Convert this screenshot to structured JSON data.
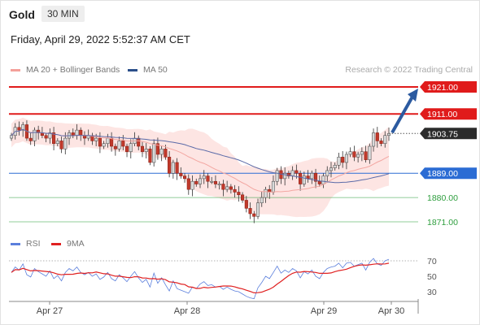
{
  "header": {
    "title": "Gold",
    "timeframe_badge": "30 MIN"
  },
  "timestamp": "Friday, April 29, 2022 5:52:37 AM CET",
  "legend": {
    "items": [
      {
        "label": "MA 20 + Bollinger Bands",
        "color": "#f4a09a"
      },
      {
        "label": "MA 50",
        "color": "#2b4f8a"
      }
    ],
    "credit": "Research © 2022 Trading Central"
  },
  "rsi_legend": {
    "items": [
      {
        "label": "RSI",
        "color": "#5b7fdc"
      },
      {
        "label": "9MA",
        "color": "#e02020"
      }
    ]
  },
  "colors": {
    "up_candle": "#d9d9d9",
    "down_candle": "#c0392b",
    "resistance": "#e01b1b",
    "pivot": "#2b6cd4",
    "support": "#2e9e3e",
    "current_price": "#2b2b2b",
    "band_fill": "#fde5e3",
    "ma50": "#5a6aa8",
    "ma20": "#f3a7a2",
    "arrow": "#2c5aa0"
  },
  "chart_data": [
    {
      "type": "candlestick",
      "title": "",
      "ylim": [
        1866,
        1923
      ],
      "x_tick_labels": [
        "Apr 27",
        "Apr 28",
        "Apr 29",
        "Apr 30"
      ],
      "price_levels": [
        {
          "value": 1921.0,
          "label": "1921.00",
          "kind": "resistance"
        },
        {
          "value": 1911.0,
          "label": "1911.00",
          "kind": "resistance"
        },
        {
          "value": 1903.75,
          "label": "1903.75",
          "kind": "current"
        },
        {
          "value": 1889.0,
          "label": "1889.00",
          "kind": "pivot"
        },
        {
          "value": 1880.0,
          "label": "1880.00",
          "kind": "support"
        },
        {
          "value": 1871.0,
          "label": "1871.00",
          "kind": "support"
        }
      ],
      "close_series": [
        1903,
        1906,
        1905,
        1907,
        1902,
        1901,
        1905,
        1904,
        1903,
        1902,
        1904,
        1900,
        1901,
        1898,
        1902,
        1904,
        1903,
        1905,
        1903,
        1902,
        1903,
        1901,
        1902,
        1899,
        1900,
        1902,
        1899,
        1898,
        1901,
        1899,
        1897,
        1900,
        1902,
        1899,
        1897,
        1898,
        1893,
        1900,
        1896,
        1898,
        1895,
        1889,
        1893,
        1889,
        1888,
        1887,
        1883,
        1886,
        1885,
        1887,
        1888,
        1886,
        1886,
        1885,
        1885,
        1883,
        1884,
        1883,
        1882,
        1881,
        1879,
        1876,
        1874,
        1873,
        1878,
        1880,
        1883,
        1882,
        1886,
        1890,
        1887,
        1889,
        1888,
        1890,
        1889,
        1885,
        1888,
        1887,
        1889,
        1886,
        1885,
        1888,
        1890,
        1891,
        1892,
        1895,
        1893,
        1896,
        1897,
        1895,
        1896,
        1897,
        1894,
        1899,
        1904,
        1901,
        1900,
        1903,
        1903.75
      ],
      "ma20_start": 1901.5,
      "ma50_start": 1903.6,
      "ma50_end": 1889,
      "current_marker": 1903.75,
      "arrow": {
        "from": 1903.75,
        "to": 1921.0
      }
    },
    {
      "type": "line",
      "title": "RSI",
      "ylim": [
        20,
        80
      ],
      "y_tick_labels": [
        "70",
        "50",
        "30"
      ],
      "y_ticks": [
        70,
        50,
        30
      ],
      "overbought_line": 70,
      "rsi_values": [
        55,
        62,
        58,
        66,
        52,
        49,
        60,
        56,
        53,
        50,
        57,
        47,
        51,
        44,
        55,
        60,
        57,
        62,
        55,
        52,
        55,
        50,
        53,
        46,
        49,
        55,
        47,
        44,
        52,
        48,
        43,
        50,
        56,
        48,
        42,
        46,
        36,
        54,
        41,
        48,
        39,
        31,
        44,
        34,
        32,
        30,
        28,
        36,
        34,
        40,
        43,
        38,
        39,
        36,
        37,
        33,
        36,
        33,
        31,
        30,
        27,
        24,
        22,
        21,
        35,
        42,
        50,
        47,
        55,
        63,
        54,
        58,
        55,
        60,
        57,
        48,
        56,
        53,
        58,
        50,
        47,
        55,
        60,
        62,
        63,
        67,
        61,
        67,
        68,
        63,
        65,
        67,
        58,
        68,
        73,
        66,
        64,
        70,
        72
      ],
      "ma9_start": 52
    }
  ]
}
